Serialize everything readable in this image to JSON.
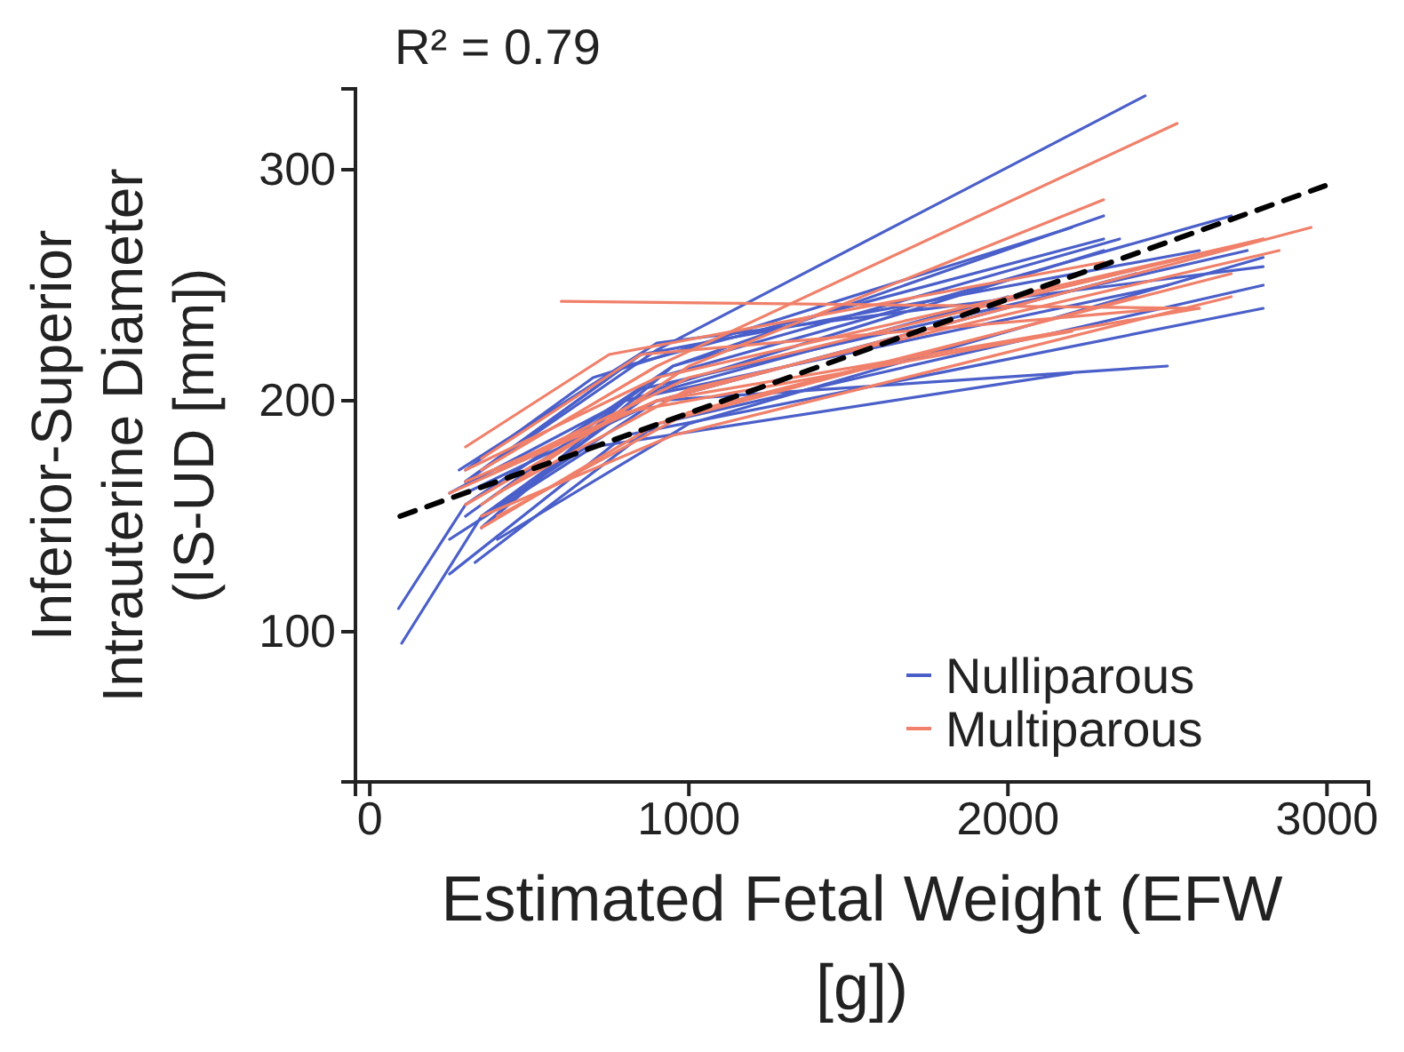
{
  "chart_data": {
    "type": "line",
    "xlabel": "Estimated Fetal Weight (EFW [g])",
    "ylabel": "Inferior-Superior Intrauterine Diameter (IS-UD [mm])",
    "annotations": [
      "R² = 0.79"
    ],
    "xlim": [
      -45,
      3130
    ],
    "ylim": [
      35,
      335
    ],
    "xticks": [
      0,
      1000,
      2000,
      3000
    ],
    "yticks": [
      100,
      200,
      300
    ],
    "grid": false,
    "legend": "bottom right",
    "line_style": "solid",
    "marker": "none",
    "series": [
      {
        "name": "Nulliparous",
        "color": "#4a5fc9",
        "x": [
          100,
          350,
          900,
          2300
        ],
        "values": [
          95,
          150,
          205,
          265
        ]
      },
      {
        "color": "#4a5fc9",
        "x": [
          90,
          300,
          950,
          2350
        ],
        "values": [
          110,
          155,
          215,
          270
        ]
      },
      {
        "color": "#4a5fc9",
        "x": [
          300,
          900,
          2430
        ],
        "values": [
          165,
          222,
          332
        ]
      },
      {
        "color": "#4a5fc9",
        "x": [
          250,
          800,
          2800
        ],
        "values": [
          125,
          185,
          240
        ]
      },
      {
        "color": "#4a5fc9",
        "x": [
          330,
          900,
          2800
        ],
        "values": [
          130,
          190,
          250
        ]
      },
      {
        "color": "#4a5fc9",
        "x": [
          300,
          900,
          2500
        ],
        "values": [
          160,
          200,
          215
        ]
      },
      {
        "color": "#4a5fc9",
        "x": [
          300,
          850,
          2750
        ],
        "values": [
          150,
          205,
          265
        ]
      },
      {
        "color": "#4a5fc9",
        "x": [
          280,
          900,
          2800
        ],
        "values": [
          170,
          225,
          258
        ]
      },
      {
        "color": "#4a5fc9",
        "x": [
          300,
          900,
          2700
        ],
        "values": [
          155,
          210,
          280
        ]
      },
      {
        "color": "#4a5fc9",
        "x": [
          350,
          950,
          2300
        ],
        "values": [
          145,
          215,
          280
        ]
      },
      {
        "color": "#4a5fc9",
        "x": [
          300,
          850,
          2600
        ],
        "values": [
          165,
          220,
          265
        ]
      },
      {
        "color": "#4a5fc9",
        "x": [
          250,
          700,
          2200
        ],
        "values": [
          140,
          180,
          212
        ]
      },
      {
        "color": "#4a5fc9",
        "x": [
          350,
          900,
          2400
        ],
        "values": [
          150,
          200,
          255
        ]
      },
      {
        "color": "#4a5fc9",
        "x": [
          300,
          800,
          2300
        ],
        "values": [
          165,
          215,
          270
        ]
      },
      {
        "color": "#4a5fc9",
        "x": [
          400,
          1000,
          2800
        ],
        "values": [
          140,
          190,
          262
        ]
      },
      {
        "color": "#4a5fc9",
        "x": [
          250,
          800,
          2500
        ],
        "values": [
          160,
          200,
          250
        ]
      },
      {
        "color": "#4a5fc9",
        "x": [
          300,
          700,
          2200
        ],
        "values": [
          170,
          210,
          275
        ]
      },
      {
        "color": "#4a5fc9",
        "x": [
          350,
          800,
          2000
        ],
        "values": [
          145,
          200,
          245
        ]
      },
      {
        "name": "Multiparous",
        "color": "#f0806a",
        "x": [
          600,
          1300,
          2600
        ],
        "values": [
          243,
          242,
          240
        ]
      },
      {
        "color": "#f0806a",
        "x": [
          350,
          1000,
          2300
        ],
        "values": [
          155,
          215,
          287
        ]
      },
      {
        "color": "#f0806a",
        "x": [
          350,
          900,
          2530
        ],
        "values": [
          170,
          215,
          320
        ]
      },
      {
        "color": "#f0806a",
        "x": [
          250,
          900,
          2950
        ],
        "values": [
          160,
          200,
          275
        ]
      },
      {
        "color": "#f0806a",
        "x": [
          300,
          900,
          2800
        ],
        "values": [
          170,
          210,
          270
        ]
      },
      {
        "color": "#f0806a",
        "x": [
          400,
          1000,
          2700
        ],
        "values": [
          150,
          195,
          255
        ]
      },
      {
        "color": "#f0806a",
        "x": [
          350,
          850,
          2500
        ],
        "values": [
          175,
          220,
          240
        ]
      },
      {
        "color": "#f0806a",
        "x": [
          300,
          800,
          2200
        ],
        "values": [
          155,
          195,
          230
        ]
      },
      {
        "color": "#f0806a",
        "x": [
          400,
          1000,
          2850
        ],
        "values": [
          160,
          205,
          265
        ]
      },
      {
        "color": "#f0806a",
        "x": [
          300,
          900,
          2600
        ],
        "values": [
          165,
          200,
          240
        ]
      },
      {
        "color": "#f0806a",
        "x": [
          350,
          900,
          2400
        ],
        "values": [
          145,
          190,
          245
        ]
      },
      {
        "color": "#f0806a",
        "x": [
          300,
          750,
          2300
        ],
        "values": [
          180,
          220,
          260
        ]
      },
      {
        "color": "#f0806a",
        "x": [
          400,
          1000,
          2800
        ],
        "values": [
          170,
          210,
          270
        ]
      },
      {
        "color": "#f0806a",
        "x": [
          350,
          950,
          2700
        ],
        "values": [
          150,
          185,
          245
        ]
      },
      {
        "type": "line",
        "color": "#000000",
        "line_style": "dashed",
        "x": [
          95,
          2994
        ],
        "values": [
          150,
          293
        ]
      }
    ]
  }
}
